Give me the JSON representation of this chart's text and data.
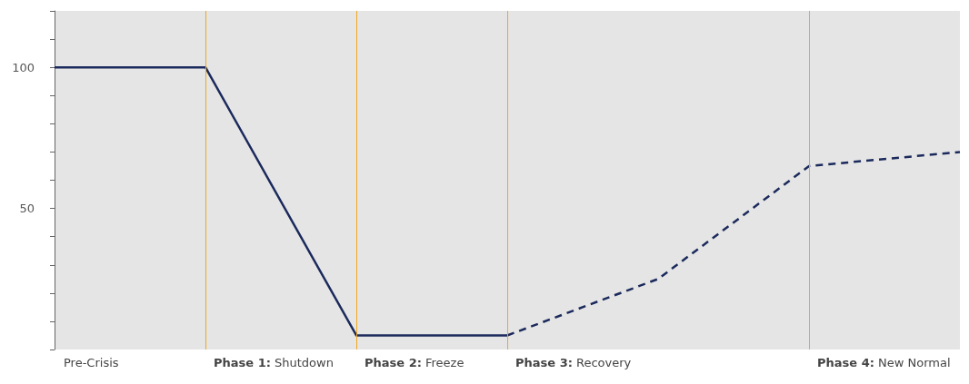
{
  "chart_data": {
    "type": "line",
    "xlim": [
      0,
      6
    ],
    "ylim": [
      0,
      120
    ],
    "yticks": [
      {
        "value": 0,
        "label": null
      },
      {
        "value": 10,
        "label": null
      },
      {
        "value": 20,
        "label": null
      },
      {
        "value": 30,
        "label": null
      },
      {
        "value": 40,
        "label": null
      },
      50,
      {
        "value": 60,
        "label": null
      },
      {
        "value": 70,
        "label": null
      },
      {
        "value": 80,
        "label": null
      },
      {
        "value": 90,
        "label": null
      },
      100,
      {
        "value": 110,
        "label": null
      },
      {
        "value": 120,
        "label": null
      }
    ],
    "tick_labels": "y",
    "grid": false,
    "marker": "none",
    "series": [
      {
        "color": "#1b2a5c",
        "line_style": "solid",
        "x": [
          0,
          1,
          2,
          3
        ],
        "values": [
          100,
          100,
          5,
          5
        ]
      },
      {
        "color": "#1b2a5c",
        "line_style": "dashed",
        "x": [
          3,
          4,
          5,
          6
        ],
        "values": [
          5,
          25,
          65,
          70
        ]
      }
    ],
    "ref_lines": [
      {
        "axis": "x",
        "value": 1,
        "label": "Phase 1: Shutdown",
        "color": "#f0a81c"
      },
      {
        "axis": "x",
        "value": 2,
        "label": "Phase 2: Freeze",
        "color": "#f0a81c"
      },
      {
        "axis": "x",
        "value": 3,
        "label": "Phase 3: Recovery",
        "color": "#f0a81c"
      },
      {
        "axis": "x",
        "value": 5,
        "label": "Phase 4: New Normal",
        "color": "#f0a81c"
      }
    ],
    "annotations": [
      "Pre-Crisis"
    ]
  }
}
